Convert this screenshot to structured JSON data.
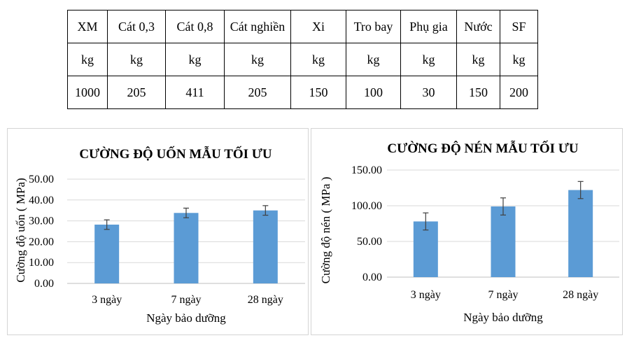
{
  "table": {
    "headers": [
      "XM",
      "Cát 0,3",
      "Cát 0,8",
      "Cát nghiền",
      "Xi",
      "Tro bay",
      "Phụ gia",
      "Nước",
      "SF"
    ],
    "units": [
      "kg",
      "kg",
      "kg",
      "kg",
      "kg",
      "kg",
      "kg",
      "kg",
      "kg"
    ],
    "values": [
      "1000",
      "205",
      "411",
      "205",
      "150",
      "100",
      "30",
      "150",
      "200"
    ]
  },
  "chart_data": [
    {
      "type": "bar",
      "title": "CƯỜNG ĐỘ UỐN MẪU TỐI ƯU",
      "xlabel": "Ngày bảo dưỡng",
      "ylabel": "Cường độ uốn ( MPa)",
      "categories": [
        "3 ngày",
        "7 ngày",
        "28 ngày"
      ],
      "values": [
        28.2,
        33.8,
        35.0
      ],
      "errors": [
        2.3,
        2.3,
        2.3
      ],
      "ylim": [
        0,
        50
      ],
      "yticks": [
        "0.00",
        "10.00",
        "20.00",
        "30.00",
        "40.00",
        "50.00"
      ],
      "grid": true,
      "bar_color": "#5b9bd5",
      "grid_color": "#d9d9d9"
    },
    {
      "type": "bar",
      "title": "CƯỜNG ĐỘ NÉN MẪU TỐI ƯU",
      "xlabel": "Ngày bảo dưỡng",
      "ylabel": "Cường độ nén ( MPa )",
      "categories": [
        "3 ngày",
        "7 ngày",
        "28 ngày"
      ],
      "values": [
        78,
        99,
        122
      ],
      "errors": [
        12,
        12,
        12
      ],
      "ylim": [
        0,
        150
      ],
      "yticks": [
        "0.00",
        "50.00",
        "100.00",
        "150.00"
      ],
      "grid": true,
      "bar_color": "#5b9bd5",
      "grid_color": "#d9d9d9"
    }
  ]
}
